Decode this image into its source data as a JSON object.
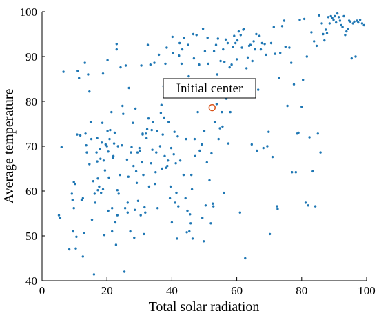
{
  "chart_data": {
    "type": "scatter",
    "title": "",
    "xlabel": "Total solar radiation",
    "ylabel": "Average temperature",
    "xlim": [
      0,
      100
    ],
    "ylim": [
      40,
      100
    ],
    "xticks": [
      0,
      20,
      40,
      60,
      80,
      100
    ],
    "yticks": [
      40,
      50,
      60,
      70,
      80,
      90,
      100
    ],
    "grid": false,
    "colors": {
      "points": "#1f77b4",
      "center": "#d95319"
    },
    "annotation": {
      "text": "Initial center",
      "x": 52.4,
      "y": 78.6
    },
    "points": [
      [
        5.2,
        54.6
      ],
      [
        5.6,
        54.0
      ],
      [
        6.0,
        69.8
      ],
      [
        6.6,
        86.6
      ],
      [
        8.4,
        47.0
      ],
      [
        9.2,
        59.4
      ],
      [
        9.4,
        58.0
      ],
      [
        9.6,
        51.0
      ],
      [
        9.8,
        62.0
      ],
      [
        9.8,
        56.2
      ],
      [
        10.2,
        61.6
      ],
      [
        10.4,
        47.2
      ],
      [
        10.6,
        49.8
      ],
      [
        10.8,
        72.6
      ],
      [
        11.0,
        86.8
      ],
      [
        11.4,
        85.2
      ],
      [
        11.8,
        72.4
      ],
      [
        12.2,
        58.0
      ],
      [
        12.6,
        58.4
      ],
      [
        12.6,
        45.4
      ],
      [
        13.0,
        50.6
      ],
      [
        13.2,
        88.6
      ],
      [
        13.4,
        72.8
      ],
      [
        13.6,
        70.2
      ],
      [
        13.8,
        68.6
      ],
      [
        14.2,
        86.0
      ],
      [
        14.6,
        66.0
      ],
      [
        14.6,
        82.2
      ],
      [
        15.0,
        75.4
      ],
      [
        15.2,
        71.6
      ],
      [
        15.4,
        53.6
      ],
      [
        15.8,
        62.2
      ],
      [
        16.0,
        41.4
      ],
      [
        16.2,
        59.4
      ],
      [
        16.4,
        57.4
      ],
      [
        16.8,
        68.6
      ],
      [
        17.0,
        71.8
      ],
      [
        17.0,
        66.6
      ],
      [
        17.2,
        62.8
      ],
      [
        17.2,
        60.2
      ],
      [
        17.6,
        61.0
      ],
      [
        17.8,
        69.4
      ],
      [
        18.0,
        67.2
      ],
      [
        18.2,
        59.6
      ],
      [
        18.4,
        70.8
      ],
      [
        18.6,
        75.2
      ],
      [
        18.8,
        86.2
      ],
      [
        18.8,
        60.4
      ],
      [
        19.0,
        66.8
      ],
      [
        19.2,
        50.2
      ],
      [
        19.4,
        64.6
      ],
      [
        19.6,
        70.4
      ],
      [
        20.0,
        70.0
      ],
      [
        20.2,
        89.2
      ],
      [
        20.2,
        73.4
      ],
      [
        20.4,
        68.8
      ],
      [
        20.4,
        55.6
      ],
      [
        20.6,
        63.0
      ],
      [
        20.8,
        71.6
      ],
      [
        21.0,
        73.6
      ],
      [
        21.4,
        77.6
      ],
      [
        21.6,
        56.2
      ],
      [
        21.6,
        51.0
      ],
      [
        21.8,
        67.4
      ],
      [
        22.0,
        67.8
      ],
      [
        22.2,
        70.6
      ],
      [
        22.4,
        73.0
      ],
      [
        22.6,
        53.0
      ],
      [
        22.8,
        48.0
      ],
      [
        23.0,
        91.6
      ],
      [
        23.0,
        92.8
      ],
      [
        23.2,
        60.2
      ],
      [
        23.2,
        54.6
      ],
      [
        23.4,
        70.0
      ],
      [
        23.6,
        59.4
      ],
      [
        24.0,
        63.6
      ],
      [
        24.2,
        87.6
      ],
      [
        24.6,
        70.2
      ],
      [
        24.8,
        79.0
      ],
      [
        25.0,
        77.2
      ],
      [
        25.4,
        42.0
      ],
      [
        25.6,
        56.2
      ],
      [
        25.8,
        88.0
      ],
      [
        26.2,
        67.0
      ],
      [
        26.4,
        57.4
      ],
      [
        26.4,
        55.2
      ],
      [
        26.6,
        63.2
      ],
      [
        26.8,
        83.0
      ],
      [
        27.2,
        51.0
      ],
      [
        27.4,
        68.6
      ],
      [
        27.6,
        69.8
      ],
      [
        28.0,
        75.2
      ],
      [
        28.2,
        65.6
      ],
      [
        28.4,
        49.6
      ],
      [
        28.6,
        55.8
      ],
      [
        28.8,
        78.4
      ],
      [
        29.0,
        64.4
      ],
      [
        29.2,
        61.8
      ],
      [
        29.4,
        68.6
      ],
      [
        29.6,
        57.8
      ],
      [
        30.0,
        69.6
      ],
      [
        30.2,
        69.0
      ],
      [
        30.4,
        54.6
      ],
      [
        30.6,
        88.0
      ],
      [
        30.8,
        66.4
      ],
      [
        31.0,
        72.6
      ],
      [
        31.0,
        72.8
      ],
      [
        31.2,
        63.6
      ],
      [
        31.4,
        50.4
      ],
      [
        31.6,
        56.4
      ],
      [
        31.8,
        55.2
      ],
      [
        32.0,
        72.8
      ],
      [
        32.2,
        71.8
      ],
      [
        32.4,
        73.8
      ],
      [
        32.6,
        92.6
      ],
      [
        32.8,
        76.2
      ],
      [
        33.0,
        61.0
      ],
      [
        33.4,
        88.2
      ],
      [
        33.6,
        66.2
      ],
      [
        33.8,
        73.6
      ],
      [
        34.0,
        69.2
      ],
      [
        34.2,
        75.4
      ],
      [
        34.6,
        88.6
      ],
      [
        34.8,
        61.6
      ],
      [
        35.0,
        64.2
      ],
      [
        35.2,
        68.6
      ],
      [
        35.4,
        73.4
      ],
      [
        35.6,
        56.2
      ],
      [
        36.0,
        90.4
      ],
      [
        36.4,
        70.0
      ],
      [
        36.6,
        77.4
      ],
      [
        36.8,
        79.2
      ],
      [
        37.0,
        65.0
      ],
      [
        37.2,
        72.6
      ],
      [
        37.4,
        83.4
      ],
      [
        37.6,
        76.4
      ],
      [
        37.8,
        67.8
      ],
      [
        38.0,
        88.4
      ],
      [
        38.2,
        65.2
      ],
      [
        38.4,
        92.0
      ],
      [
        38.6,
        65.6
      ],
      [
        38.8,
        66.8
      ],
      [
        39.0,
        75.4
      ],
      [
        39.2,
        84.8
      ],
      [
        39.4,
        58.4
      ],
      [
        39.6,
        61.0
      ],
      [
        39.8,
        69.6
      ],
      [
        40.0,
        53.0
      ],
      [
        40.2,
        94.4
      ],
      [
        40.4,
        90.8
      ],
      [
        40.6,
        68.2
      ],
      [
        40.8,
        73.2
      ],
      [
        41.0,
        57.4
      ],
      [
        41.2,
        66.2
      ],
      [
        41.4,
        59.6
      ],
      [
        41.6,
        49.4
      ],
      [
        41.8,
        72.2
      ],
      [
        42.0,
        56.6
      ],
      [
        42.2,
        90.2
      ],
      [
        42.4,
        93.0
      ],
      [
        42.6,
        66.8
      ],
      [
        43.0,
        88.4
      ],
      [
        43.2,
        91.6
      ],
      [
        43.6,
        63.6
      ],
      [
        43.8,
        94.2
      ],
      [
        44.0,
        82.6
      ],
      [
        44.2,
        58.4
      ],
      [
        44.4,
        71.6
      ],
      [
        44.6,
        50.8
      ],
      [
        44.8,
        55.6
      ],
      [
        45.0,
        92.6
      ],
      [
        45.2,
        85.6
      ],
      [
        45.4,
        51.0
      ],
      [
        45.6,
        54.8
      ],
      [
        45.8,
        52.8
      ],
      [
        46.0,
        63.6
      ],
      [
        46.2,
        60.4
      ],
      [
        46.4,
        49.4
      ],
      [
        46.6,
        95.0
      ],
      [
        46.8,
        89.6
      ],
      [
        47.0,
        71.6
      ],
      [
        47.2,
        67.8
      ],
      [
        47.6,
        94.8
      ],
      [
        48.0,
        77.6
      ],
      [
        48.4,
        88.2
      ],
      [
        48.6,
        69.0
      ],
      [
        49.0,
        84.8
      ],
      [
        49.2,
        70.4
      ],
      [
        49.4,
        54.0
      ],
      [
        49.6,
        96.2
      ],
      [
        49.8,
        48.8
      ],
      [
        50.0,
        73.4
      ],
      [
        50.2,
        91.2
      ],
      [
        50.4,
        56.8
      ],
      [
        50.6,
        82.6
      ],
      [
        50.8,
        66.4
      ],
      [
        51.0,
        94.2
      ],
      [
        51.2,
        88.4
      ],
      [
        51.6,
        62.4
      ],
      [
        52.0,
        52.8
      ],
      [
        52.2,
        68.4
      ],
      [
        52.6,
        57.2
      ],
      [
        52.8,
        56.6
      ],
      [
        53.0,
        91.2
      ],
      [
        53.2,
        75.4
      ],
      [
        53.6,
        92.6
      ],
      [
        53.8,
        79.4
      ],
      [
        54.0,
        86.0
      ],
      [
        54.2,
        94.0
      ],
      [
        54.4,
        71.6
      ],
      [
        54.8,
        74.0
      ],
      [
        55.0,
        89.0
      ],
      [
        55.4,
        77.6
      ],
      [
        55.6,
        74.4
      ],
      [
        55.8,
        91.6
      ],
      [
        56.0,
        59.6
      ],
      [
        56.2,
        88.8
      ],
      [
        56.6,
        93.8
      ],
      [
        56.8,
        80.6
      ],
      [
        57.2,
        93.0
      ],
      [
        57.4,
        70.6
      ],
      [
        57.8,
        87.6
      ],
      [
        58.0,
        77.6
      ],
      [
        58.4,
        88.2
      ],
      [
        58.8,
        92.2
      ],
      [
        59.2,
        94.6
      ],
      [
        59.6,
        93.0
      ],
      [
        60.0,
        89.4
      ],
      [
        60.2,
        93.6
      ],
      [
        60.6,
        95.6
      ],
      [
        61.0,
        55.2
      ],
      [
        61.2,
        94.8
      ],
      [
        61.6,
        92.0
      ],
      [
        62.0,
        96.0
      ],
      [
        62.2,
        96.2
      ],
      [
        62.6,
        45.0
      ],
      [
        63.0,
        87.4
      ],
      [
        63.4,
        89.8
      ],
      [
        63.8,
        92.4
      ],
      [
        64.2,
        92.6
      ],
      [
        64.6,
        70.4
      ],
      [
        64.8,
        89.0
      ],
      [
        65.2,
        93.4
      ],
      [
        65.6,
        91.6
      ],
      [
        66.0,
        95.0
      ],
      [
        66.2,
        69.0
      ],
      [
        66.6,
        82.6
      ],
      [
        67.0,
        94.6
      ],
      [
        67.4,
        91.6
      ],
      [
        67.8,
        93.0
      ],
      [
        68.2,
        69.6
      ],
      [
        68.6,
        92.8
      ],
      [
        69.0,
        90.4
      ],
      [
        69.4,
        70.0
      ],
      [
        69.8,
        73.2
      ],
      [
        70.2,
        50.4
      ],
      [
        70.6,
        93.0
      ],
      [
        71.0,
        67.6
      ],
      [
        71.4,
        96.6
      ],
      [
        71.8,
        90.6
      ],
      [
        72.4,
        56.6
      ],
      [
        72.6,
        56.0
      ],
      [
        73.0,
        85.2
      ],
      [
        73.4,
        90.8
      ],
      [
        74.0,
        96.8
      ],
      [
        74.6,
        98.0
      ],
      [
        75.0,
        92.2
      ],
      [
        75.6,
        79.0
      ],
      [
        76.2,
        92.0
      ],
      [
        76.8,
        88.6
      ],
      [
        77.0,
        64.2
      ],
      [
        77.6,
        83.8
      ],
      [
        78.2,
        64.2
      ],
      [
        78.6,
        72.8
      ],
      [
        79.0,
        73.0
      ],
      [
        79.4,
        98.2
      ],
      [
        80.0,
        78.8
      ],
      [
        80.4,
        84.8
      ],
      [
        80.8,
        98.4
      ],
      [
        81.2,
        57.4
      ],
      [
        81.6,
        90.0
      ],
      [
        82.0,
        56.8
      ],
      [
        82.4,
        72.0
      ],
      [
        83.0,
        95.4
      ],
      [
        83.4,
        64.4
      ],
      [
        83.8,
        93.4
      ],
      [
        84.2,
        56.6
      ],
      [
        84.6,
        92.4
      ],
      [
        85.0,
        72.8
      ],
      [
        85.4,
        99.2
      ],
      [
        85.8,
        68.6
      ],
      [
        86.2,
        97.4
      ],
      [
        86.6,
        95.0
      ],
      [
        87.0,
        93.6
      ],
      [
        87.4,
        96.0
      ],
      [
        87.8,
        95.2
      ],
      [
        88.2,
        98.8
      ],
      [
        88.6,
        97.4
      ],
      [
        89.0,
        99.0
      ],
      [
        89.4,
        98.6
      ],
      [
        89.8,
        98.2
      ],
      [
        90.2,
        99.0
      ],
      [
        90.6,
        97.6
      ],
      [
        91.0,
        99.6
      ],
      [
        91.4,
        98.8
      ],
      [
        91.8,
        98.0
      ],
      [
        92.2,
        97.0
      ],
      [
        92.6,
        96.6
      ],
      [
        93.0,
        99.0
      ],
      [
        93.4,
        94.8
      ],
      [
        93.8,
        95.6
      ],
      [
        94.2,
        96.2
      ],
      [
        94.6,
        98.0
      ],
      [
        95.0,
        97.8
      ],
      [
        95.4,
        89.6
      ],
      [
        95.8,
        97.4
      ],
      [
        96.2,
        97.8
      ],
      [
        96.6,
        90.0
      ],
      [
        97.0,
        98.0
      ],
      [
        97.4,
        97.6
      ],
      [
        98.0,
        98.2
      ],
      [
        98.6,
        97.4
      ],
      [
        99.2,
        97.0
      ]
    ]
  }
}
